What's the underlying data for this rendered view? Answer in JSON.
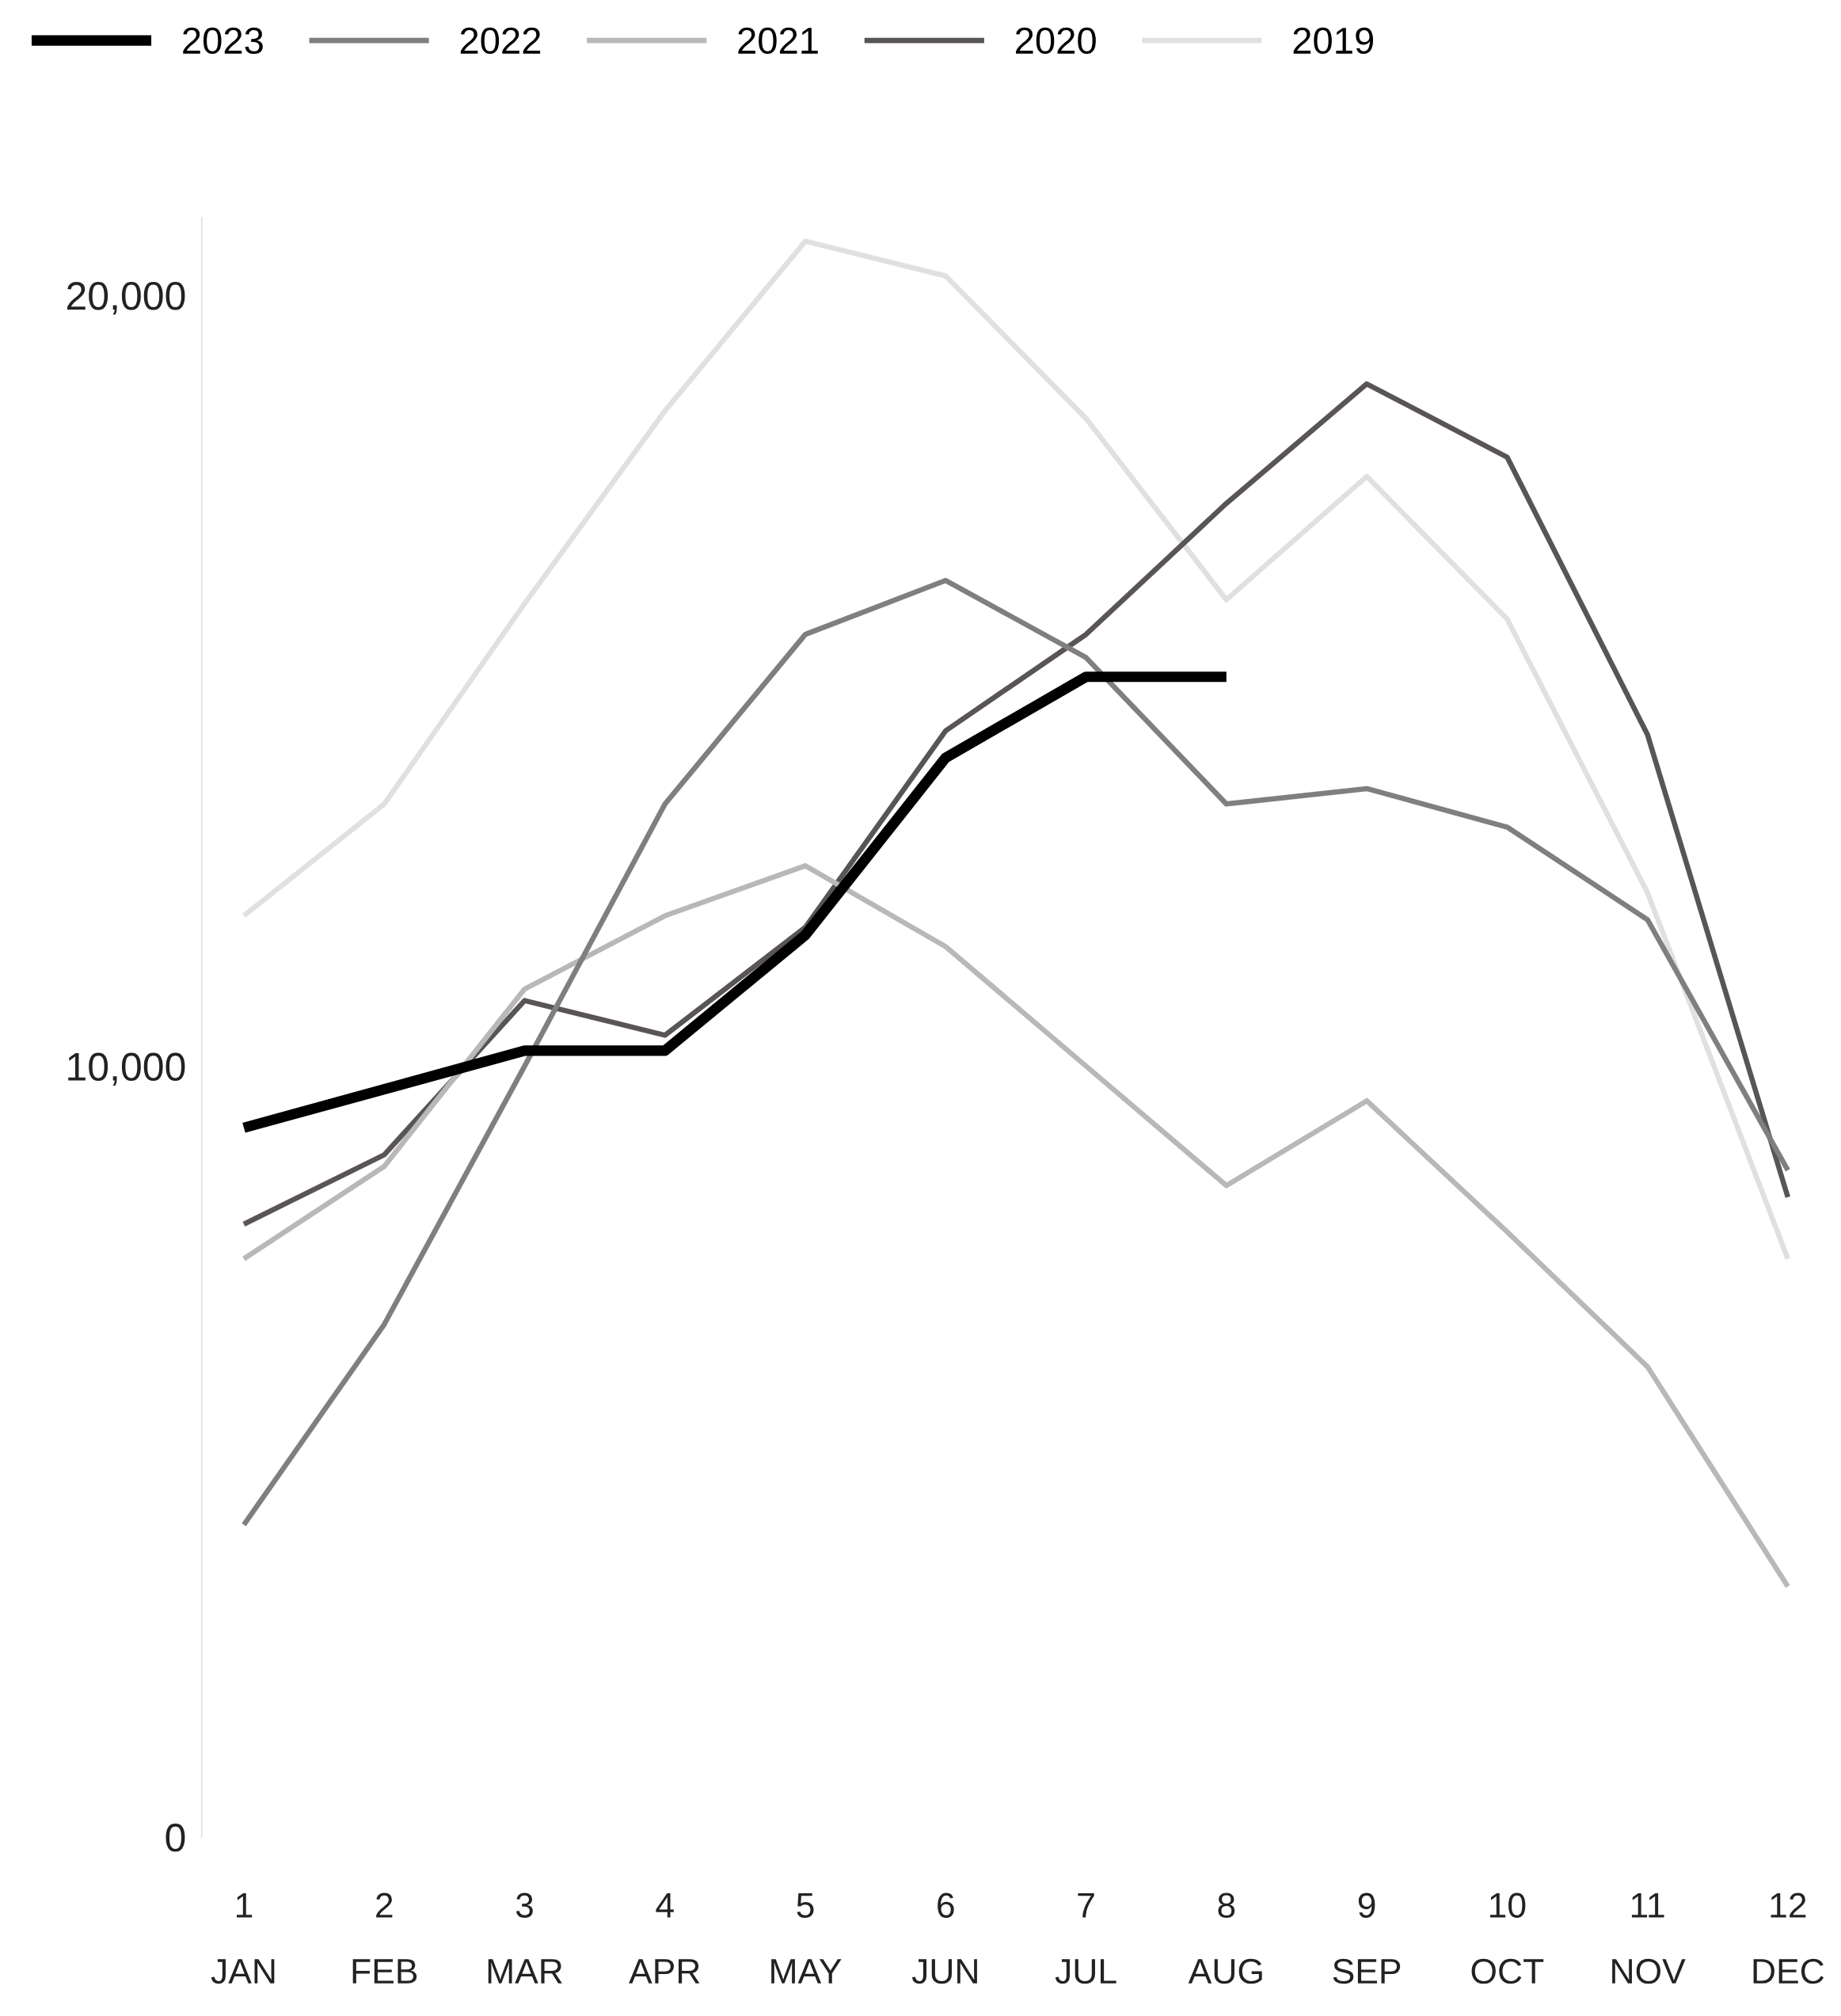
{
  "chart_data": {
    "type": "line",
    "categories": [
      "1\nJAN",
      "2\nFEB",
      "3\nMAR",
      "4\nAPR",
      "5\nMAY",
      "6\nJUN",
      "7\nJUL",
      "8\nAUG",
      "9\nSEP",
      "10\nOCT",
      "11\nNOV",
      "12\nDEC"
    ],
    "series": [
      {
        "name": "2023",
        "color": "#000000",
        "values": [
          9200,
          9700,
          10200,
          10200,
          11700,
          14000,
          15050,
          15050,
          null,
          null,
          null,
          null
        ]
      },
      {
        "name": "2022",
        "color": "#7f7f7f",
        "values": [
          4050,
          6650,
          10000,
          13400,
          15600,
          16300,
          15300,
          13400,
          13600,
          13100,
          11900,
          8650
        ]
      },
      {
        "name": "2021",
        "color": "#b8b8b8",
        "values": [
          7500,
          8700,
          11000,
          11950,
          12600,
          11550,
          10000,
          8450,
          9550,
          7850,
          6100,
          3250
        ]
      },
      {
        "name": "2020",
        "color": "#5a5555",
        "values": [
          7950,
          8850,
          10850,
          10400,
          11800,
          14350,
          15600,
          17300,
          18850,
          17900,
          14300,
          8300
        ]
      },
      {
        "name": "2019",
        "color": "#e0e0e0",
        "values": [
          11950,
          13400,
          16000,
          18500,
          20700,
          20250,
          18400,
          16050,
          17650,
          15800,
          12250,
          7500
        ]
      }
    ],
    "ylim": [
      0,
      21000
    ],
    "yticks": [
      0,
      {
        "value": 10000,
        "label": "10,000"
      },
      {
        "value": 20000,
        "label": "20,000"
      }
    ],
    "grid": false,
    "legend": "top left",
    "marker": "none",
    "line_style": "solid"
  }
}
